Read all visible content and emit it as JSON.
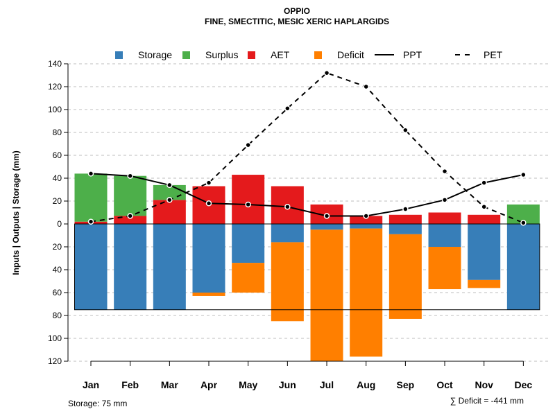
{
  "chart_data": {
    "type": "bar",
    "title": "OPPIO",
    "subtitle": "FINE, SMECTITIC, MESIC XERIC HAPLARGIDS",
    "ylabel": "Inputs | Outputs | Storage    (mm)",
    "ylim": [
      -120,
      140
    ],
    "y_ticks": [
      140,
      120,
      100,
      80,
      60,
      40,
      20,
      0,
      -20,
      -40,
      -60,
      -80,
      -100,
      -120
    ],
    "y_tick_labels": [
      "140",
      "120",
      "100",
      "80",
      "60",
      "40",
      "20",
      "0",
      "20",
      "40",
      "60",
      "80",
      "100",
      "120"
    ],
    "categories": [
      "Jan",
      "Feb",
      "Mar",
      "Apr",
      "May",
      "Jun",
      "Jul",
      "Aug",
      "Sep",
      "Oct",
      "Nov",
      "Dec"
    ],
    "storage_capacity": 75,
    "grid": true,
    "series": [
      {
        "name": "AET",
        "values": [
          2,
          7,
          21,
          33,
          43,
          33,
          17,
          7,
          8,
          10,
          8,
          0
        ]
      },
      {
        "name": "Surplus",
        "values": [
          42,
          35,
          13,
          0,
          0,
          0,
          0,
          0,
          0,
          0,
          0,
          17
        ]
      },
      {
        "name": "Storage",
        "values": [
          75,
          75,
          75,
          60,
          34,
          16,
          5,
          4,
          9,
          20,
          49,
          75
        ]
      },
      {
        "name": "Deficit",
        "values": [
          0,
          0,
          0,
          3,
          26,
          69,
          115,
          112,
          74,
          37,
          7,
          0
        ]
      },
      {
        "name": "PPT",
        "values": [
          44,
          42,
          34,
          18,
          17,
          15,
          7,
          7,
          13,
          21,
          36,
          43
        ]
      },
      {
        "name": "PET",
        "values": [
          2,
          7,
          21,
          36,
          69,
          101,
          132,
          120,
          82,
          46,
          15,
          1
        ]
      }
    ],
    "colors": {
      "Storage": "#377eb8",
      "Surplus": "#4daf4a",
      "AET": "#e41a1c",
      "Deficit": "#ff7f00"
    },
    "legend": {
      "position": "top",
      "items": [
        {
          "label": "Storage",
          "kind": "box",
          "color": "#377eb8"
        },
        {
          "label": "Surplus",
          "kind": "box",
          "color": "#4daf4a"
        },
        {
          "label": "AET",
          "kind": "box",
          "color": "#e41a1c"
        },
        {
          "label": "Deficit",
          "kind": "box",
          "color": "#ff7f00"
        },
        {
          "label": "PPT",
          "kind": "solid-line",
          "color": "#000000"
        },
        {
          "label": "PET",
          "kind": "dashed-line",
          "color": "#000000"
        }
      ]
    },
    "footer_left": "Storage: 75 mm",
    "footer_right": "∑ Deficit = -441 mm"
  }
}
